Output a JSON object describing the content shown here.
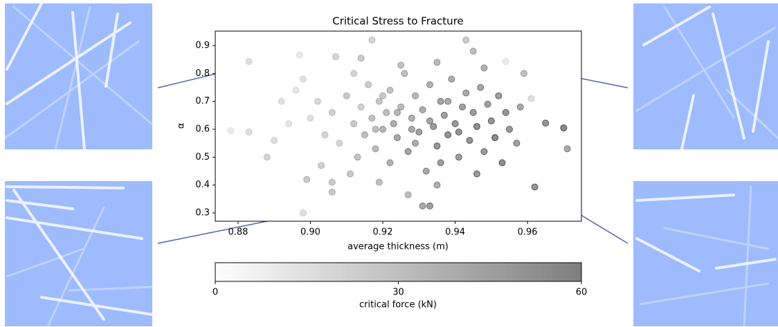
{
  "chart_data": {
    "type": "scatter",
    "title": "Critical Stress to Fracture",
    "x_label": "average thickness (m)",
    "y_label": "α",
    "xlim": [
      0.8737,
      0.9749
    ],
    "ylim": [
      0.2702,
      0.952
    ],
    "xticks": [
      0.88,
      {
        "value": 0.9,
        "label": "0.90"
      },
      0.92,
      0.94,
      0.96
    ],
    "yticks": [
      0.3,
      0.4,
      0.5,
      0.6,
      0.7,
      0.8,
      0.9
    ],
    "colorbar": {
      "label": "critical force (kN)",
      "lim": [
        0,
        60
      ],
      "ticks": [
        0,
        30,
        60
      ],
      "colors": [
        "#ffffff",
        "#000000"
      ],
      "alpha": 0.5
    },
    "x": [
      0.897,
      0.883,
      0.878,
      0.883,
      0.888,
      0.898,
      0.899,
      0.906,
      0.906,
      0.917,
      0.943,
      0.954,
      0.962,
      0.97,
      0.971,
      0.965,
      0.961,
      0.931,
      0.933,
      0.927,
      0.945,
      0.907,
      0.914,
      0.9,
      0.902,
      0.904,
      0.906,
      0.908,
      0.91,
      0.912,
      0.913,
      0.914,
      0.915,
      0.916,
      0.917,
      0.918,
      0.919,
      0.92,
      0.921,
      0.922,
      0.922,
      0.923,
      0.924,
      0.925,
      0.926,
      0.927,
      0.928,
      0.929,
      0.93,
      0.931,
      0.932,
      0.933,
      0.934,
      0.935,
      0.936,
      0.937,
      0.938,
      0.939,
      0.94,
      0.941,
      0.942,
      0.943,
      0.944,
      0.945,
      0.946,
      0.947,
      0.948,
      0.949,
      0.95,
      0.951,
      0.952,
      0.953,
      0.954,
      0.955,
      0.957,
      0.958,
      0.959,
      0.896,
      0.892,
      0.89,
      0.894,
      0.898,
      0.903,
      0.911,
      0.919,
      0.935,
      0.946,
      0.925,
      0.935,
      0.948,
      0.912,
      0.928,
      0.924,
      0.933,
      0.938,
      0.918,
      0.929,
      0.941,
      0.936,
      0.92
    ],
    "y": [
      0.867,
      0.843,
      0.595,
      0.59,
      0.5,
      0.3,
      0.42,
      0.41,
      0.375,
      0.92,
      0.92,
      0.843,
      0.393,
      0.605,
      0.53,
      0.622,
      0.71,
      0.325,
      0.325,
      0.365,
      0.88,
      0.86,
      0.855,
      0.64,
      0.7,
      0.58,
      0.66,
      0.55,
      0.72,
      0.62,
      0.5,
      0.68,
      0.58,
      0.76,
      0.64,
      0.53,
      0.7,
      0.6,
      0.66,
      0.48,
      0.74,
      0.62,
      0.57,
      0.68,
      0.8,
      0.52,
      0.64,
      0.72,
      0.59,
      0.67,
      0.45,
      0.76,
      0.61,
      0.54,
      0.7,
      0.65,
      0.58,
      0.78,
      0.62,
      0.5,
      0.68,
      0.73,
      0.56,
      0.66,
      0.61,
      0.75,
      0.52,
      0.69,
      0.63,
      0.57,
      0.72,
      0.48,
      0.66,
      0.6,
      0.55,
      0.68,
      0.8,
      0.74,
      0.7,
      0.56,
      0.62,
      0.78,
      0.47,
      0.44,
      0.41,
      0.4,
      0.44,
      0.83,
      0.84,
      0.82,
      0.8,
      0.6,
      0.66,
      0.63,
      0.7,
      0.6,
      0.55,
      0.59,
      0.48,
      0.72
    ],
    "c": [
      10,
      15,
      10,
      15,
      20,
      15,
      25,
      25,
      25,
      20,
      25,
      10,
      50,
      55,
      40,
      50,
      15,
      40,
      45,
      30,
      30,
      20,
      25,
      15,
      18,
      20,
      22,
      20,
      25,
      25,
      28,
      22,
      30,
      24,
      28,
      32,
      26,
      34,
      30,
      36,
      28,
      38,
      40,
      32,
      30,
      42,
      36,
      34,
      44,
      38,
      40,
      36,
      46,
      48,
      42,
      44,
      50,
      38,
      48,
      46,
      44,
      40,
      50,
      46,
      52,
      42,
      48,
      44,
      50,
      54,
      46,
      52,
      50,
      48,
      44,
      40,
      30,
      12,
      14,
      16,
      12,
      14,
      22,
      26,
      30,
      38,
      48,
      28,
      32,
      36,
      20,
      40,
      34,
      42,
      40,
      30,
      38,
      50,
      44,
      26
    ]
  }
}
